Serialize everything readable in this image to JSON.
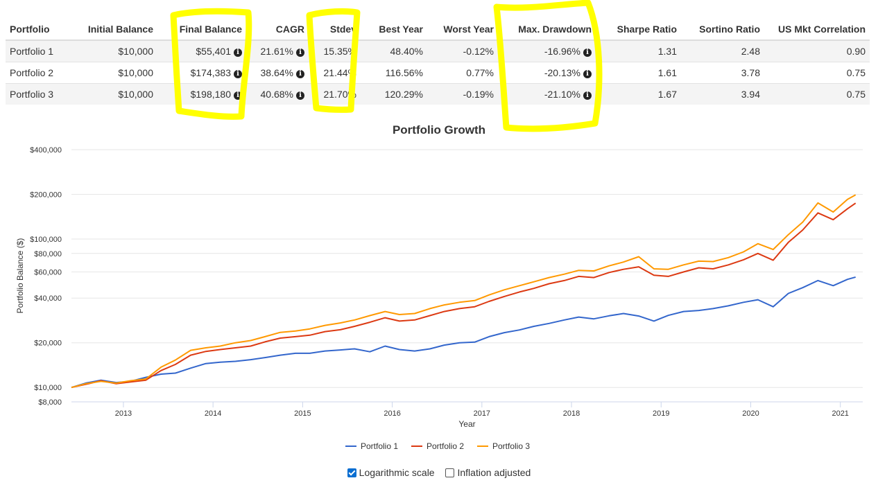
{
  "table": {
    "headers": [
      "Portfolio",
      "Initial Balance",
      "Final Balance",
      "CAGR",
      "Stdev",
      "Best Year",
      "Worst Year",
      "Max. Drawdown",
      "Sharpe Ratio",
      "Sortino Ratio",
      "US Mkt Correlation"
    ],
    "rows": [
      {
        "portfolio": "Portfolio 1",
        "initial": "$10,000",
        "final": "$55,401",
        "cagr": "21.61%",
        "stdev": "15.35%",
        "best": "48.40%",
        "worst": "-0.12%",
        "drawdown": "-16.96%",
        "sharpe": "1.31",
        "sortino": "2.48",
        "correlation": "0.90"
      },
      {
        "portfolio": "Portfolio 2",
        "initial": "$10,000",
        "final": "$174,383",
        "cagr": "38.64%",
        "stdev": "21.44%",
        "best": "116.56%",
        "worst": "0.77%",
        "drawdown": "-20.13%",
        "sharpe": "1.61",
        "sortino": "3.78",
        "correlation": "0.75"
      },
      {
        "portfolio": "Portfolio 3",
        "initial": "$10,000",
        "final": "$198,180",
        "cagr": "40.68%",
        "stdev": "21.70%",
        "best": "120.29%",
        "worst": "-0.19%",
        "drawdown": "-21.10%",
        "sharpe": "1.67",
        "sortino": "3.94",
        "correlation": "0.75"
      }
    ],
    "info_icon_glyph": "i",
    "highlight_color": "#ffff00"
  },
  "chart_data": {
    "type": "line",
    "title": "Portfolio Growth",
    "xlabel": "Year",
    "ylabel": "Portfolio Balance ($)",
    "y_scale": "log",
    "ylim": [
      8000,
      400000
    ],
    "xlim": [
      2012.42,
      2021.25
    ],
    "y_ticks": [
      400000,
      200000,
      100000,
      80000,
      60000,
      40000,
      20000,
      10000,
      8000
    ],
    "y_tick_labels": [
      "$400,000",
      "$200,000",
      "$100,000",
      "$80,000",
      "$60,000",
      "$40,000",
      "$20,000",
      "$10,000",
      "$8,000"
    ],
    "x_ticks": [
      2013,
      2014,
      2015,
      2016,
      2017,
      2018,
      2019,
      2020,
      2021
    ],
    "x_tick_labels": [
      "2013",
      "2014",
      "2015",
      "2016",
      "2017",
      "2018",
      "2019",
      "2020",
      "2021"
    ],
    "grid": true,
    "legend_position": "bottom",
    "series": [
      {
        "name": "Portfolio 1",
        "color": "#3366cc",
        "points": [
          [
            2012.42,
            10000
          ],
          [
            2012.58,
            10700
          ],
          [
            2012.75,
            11200
          ],
          [
            2012.92,
            10800
          ],
          [
            2013.08,
            11000
          ],
          [
            2013.25,
            11700
          ],
          [
            2013.42,
            12300
          ],
          [
            2013.58,
            12500
          ],
          [
            2013.75,
            13500
          ],
          [
            2013.92,
            14500
          ],
          [
            2014.08,
            14800
          ],
          [
            2014.25,
            15000
          ],
          [
            2014.42,
            15400
          ],
          [
            2014.58,
            15900
          ],
          [
            2014.75,
            16500
          ],
          [
            2014.92,
            17000
          ],
          [
            2015.08,
            17000
          ],
          [
            2015.25,
            17600
          ],
          [
            2015.42,
            17900
          ],
          [
            2015.58,
            18200
          ],
          [
            2015.75,
            17400
          ],
          [
            2015.92,
            19000
          ],
          [
            2016.08,
            18000
          ],
          [
            2016.25,
            17600
          ],
          [
            2016.42,
            18200
          ],
          [
            2016.58,
            19300
          ],
          [
            2016.75,
            20000
          ],
          [
            2016.92,
            20200
          ],
          [
            2017.08,
            22000
          ],
          [
            2017.25,
            23400
          ],
          [
            2017.42,
            24400
          ],
          [
            2017.58,
            25800
          ],
          [
            2017.75,
            27000
          ],
          [
            2017.92,
            28500
          ],
          [
            2018.08,
            29800
          ],
          [
            2018.25,
            29000
          ],
          [
            2018.42,
            30400
          ],
          [
            2018.58,
            31500
          ],
          [
            2018.75,
            30300
          ],
          [
            2018.92,
            28000
          ],
          [
            2019.08,
            30600
          ],
          [
            2019.25,
            32500
          ],
          [
            2019.42,
            33000
          ],
          [
            2019.58,
            34000
          ],
          [
            2019.75,
            35500
          ],
          [
            2019.92,
            37500
          ],
          [
            2020.08,
            39000
          ],
          [
            2020.25,
            35000
          ],
          [
            2020.42,
            43000
          ],
          [
            2020.58,
            47000
          ],
          [
            2020.75,
            52500
          ],
          [
            2020.92,
            48500
          ],
          [
            2021.08,
            53500
          ],
          [
            2021.17,
            55400
          ]
        ]
      },
      {
        "name": "Portfolio 2",
        "color": "#dc3912",
        "points": [
          [
            2012.42,
            10000
          ],
          [
            2012.58,
            10500
          ],
          [
            2012.75,
            11100
          ],
          [
            2012.92,
            10600
          ],
          [
            2013.08,
            10900
          ],
          [
            2013.25,
            11200
          ],
          [
            2013.42,
            13000
          ],
          [
            2013.58,
            14300
          ],
          [
            2013.75,
            16500
          ],
          [
            2013.92,
            17500
          ],
          [
            2014.08,
            18000
          ],
          [
            2014.25,
            18500
          ],
          [
            2014.42,
            19000
          ],
          [
            2014.58,
            20300
          ],
          [
            2014.75,
            21500
          ],
          [
            2014.92,
            22000
          ],
          [
            2015.08,
            22500
          ],
          [
            2015.25,
            23800
          ],
          [
            2015.42,
            24500
          ],
          [
            2015.58,
            25800
          ],
          [
            2015.75,
            27500
          ],
          [
            2015.92,
            29500
          ],
          [
            2016.08,
            28000
          ],
          [
            2016.25,
            28500
          ],
          [
            2016.42,
            30500
          ],
          [
            2016.58,
            32500
          ],
          [
            2016.75,
            34000
          ],
          [
            2016.92,
            35000
          ],
          [
            2017.08,
            38000
          ],
          [
            2017.25,
            41000
          ],
          [
            2017.42,
            44000
          ],
          [
            2017.58,
            46500
          ],
          [
            2017.75,
            50000
          ],
          [
            2017.92,
            52500
          ],
          [
            2018.08,
            56000
          ],
          [
            2018.25,
            55000
          ],
          [
            2018.42,
            59500
          ],
          [
            2018.58,
            62500
          ],
          [
            2018.75,
            65000
          ],
          [
            2018.92,
            57000
          ],
          [
            2019.08,
            56000
          ],
          [
            2019.25,
            60000
          ],
          [
            2019.42,
            64000
          ],
          [
            2019.58,
            63000
          ],
          [
            2019.75,
            67000
          ],
          [
            2019.92,
            72500
          ],
          [
            2020.08,
            80000
          ],
          [
            2020.25,
            72000
          ],
          [
            2020.42,
            95000
          ],
          [
            2020.58,
            115000
          ],
          [
            2020.75,
            150000
          ],
          [
            2020.92,
            135000
          ],
          [
            2021.08,
            160000
          ],
          [
            2021.17,
            174383
          ]
        ]
      },
      {
        "name": "Portfolio 3",
        "color": "#ff9900",
        "points": [
          [
            2012.42,
            10000
          ],
          [
            2012.58,
            10600
          ],
          [
            2012.75,
            11000
          ],
          [
            2012.92,
            10700
          ],
          [
            2013.08,
            11100
          ],
          [
            2013.25,
            11400
          ],
          [
            2013.42,
            13700
          ],
          [
            2013.58,
            15300
          ],
          [
            2013.75,
            17800
          ],
          [
            2013.92,
            18500
          ],
          [
            2014.08,
            19000
          ],
          [
            2014.25,
            20000
          ],
          [
            2014.42,
            20700
          ],
          [
            2014.58,
            22000
          ],
          [
            2014.75,
            23500
          ],
          [
            2014.92,
            24000
          ],
          [
            2015.08,
            24800
          ],
          [
            2015.25,
            26200
          ],
          [
            2015.42,
            27200
          ],
          [
            2015.58,
            28500
          ],
          [
            2015.75,
            30500
          ],
          [
            2015.92,
            32500
          ],
          [
            2016.08,
            31000
          ],
          [
            2016.25,
            31500
          ],
          [
            2016.42,
            34000
          ],
          [
            2016.58,
            36000
          ],
          [
            2016.75,
            37500
          ],
          [
            2016.92,
            38500
          ],
          [
            2017.08,
            42000
          ],
          [
            2017.25,
            45500
          ],
          [
            2017.42,
            48500
          ],
          [
            2017.58,
            51500
          ],
          [
            2017.75,
            55000
          ],
          [
            2017.92,
            58000
          ],
          [
            2018.08,
            61500
          ],
          [
            2018.25,
            61000
          ],
          [
            2018.42,
            66000
          ],
          [
            2018.58,
            70000
          ],
          [
            2018.75,
            76000
          ],
          [
            2018.92,
            63000
          ],
          [
            2019.08,
            62500
          ],
          [
            2019.25,
            67000
          ],
          [
            2019.42,
            71000
          ],
          [
            2019.58,
            70500
          ],
          [
            2019.75,
            75000
          ],
          [
            2019.92,
            82000
          ],
          [
            2020.08,
            93000
          ],
          [
            2020.25,
            85000
          ],
          [
            2020.42,
            107000
          ],
          [
            2020.58,
            130000
          ],
          [
            2020.75,
            175000
          ],
          [
            2020.92,
            152000
          ],
          [
            2021.08,
            185000
          ],
          [
            2021.17,
            198180
          ]
        ]
      }
    ]
  },
  "options": {
    "log_scale_label": "Logarithmic scale",
    "log_scale_checked": true,
    "inflation_label": "Inflation adjusted",
    "inflation_checked": false
  }
}
